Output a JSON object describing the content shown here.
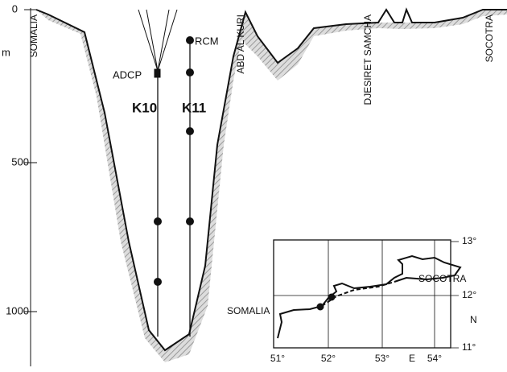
{
  "depth_axis": {
    "unit": "m",
    "ticks": [
      "0",
      "500",
      "1000"
    ]
  },
  "section_labels": [
    "SOMALIA",
    "ABD AL KURI",
    "DJESIRET SAMCHA",
    "SOCOTRA"
  ],
  "moorings": {
    "instrument_top": "ADCP",
    "instrument_current": "RCM",
    "names": [
      "K10",
      "K11"
    ]
  },
  "inset": {
    "lat_labels": [
      "13°",
      "12°",
      "11°"
    ],
    "lon_labels": [
      "51°",
      "52°",
      "53°",
      "54°"
    ],
    "n_label": "N",
    "e_label": "E",
    "places": [
      "SOCOTRA",
      "SOMALIA"
    ]
  }
}
